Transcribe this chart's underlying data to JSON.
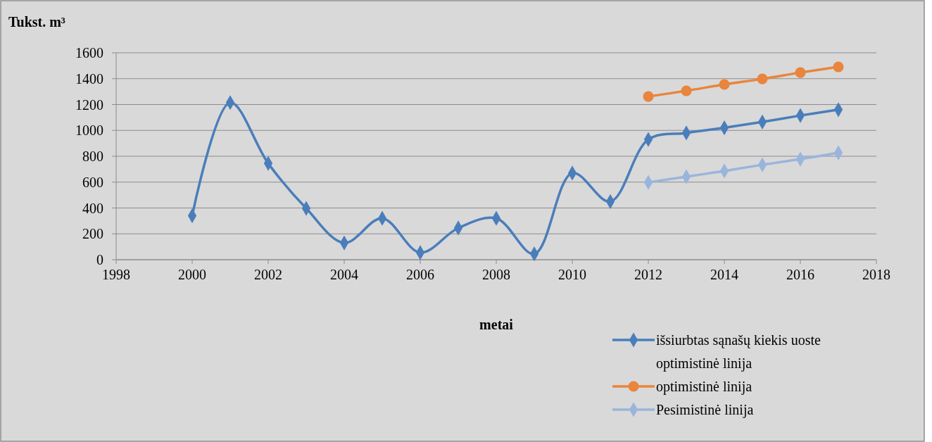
{
  "chart_data": {
    "type": "line",
    "ylabel": "Tukst. m³",
    "xlabel": "metai",
    "xlim": [
      1998,
      2018
    ],
    "xticks": [
      1998,
      2000,
      2002,
      2004,
      2006,
      2008,
      2010,
      2012,
      2014,
      2016,
      2018
    ],
    "ylim": [
      0,
      1600
    ],
    "yticks": [
      0,
      200,
      400,
      600,
      800,
      1000,
      1200,
      1400,
      1600
    ],
    "grid": "y",
    "legend": "bottom right",
    "line_style": "solid",
    "series": [
      {
        "name": "išsiurbtas sąnašų kiekis uoste optimistinė linija",
        "color": "#4a7ebb",
        "marker": "diamond",
        "x": [
          2000,
          2001,
          2002,
          2003,
          2004,
          2005,
          2006,
          2007,
          2008,
          2009,
          2010,
          2011,
          2012,
          2013,
          2014,
          2015,
          2016,
          2017
        ],
        "values": [
          340,
          1215,
          745,
          397,
          130,
          320,
          55,
          245,
          320,
          45,
          670,
          450,
          930,
          980,
          1020,
          1065,
          1115,
          1160
        ]
      },
      {
        "name": "optimistinė linija",
        "color": "#e9853c",
        "marker": "circle",
        "x": [
          2012,
          2013,
          2014,
          2015,
          2016,
          2017
        ],
        "values": [
          1262,
          1306,
          1355,
          1398,
          1447,
          1491
        ]
      },
      {
        "name": "Pesimistinė linija",
        "color": "#9ab5dc",
        "marker": "diamond",
        "x": [
          2012,
          2013,
          2014,
          2015,
          2016,
          2017
        ],
        "values": [
          598,
          642,
          686,
          734,
          778,
          827
        ]
      }
    ]
  }
}
